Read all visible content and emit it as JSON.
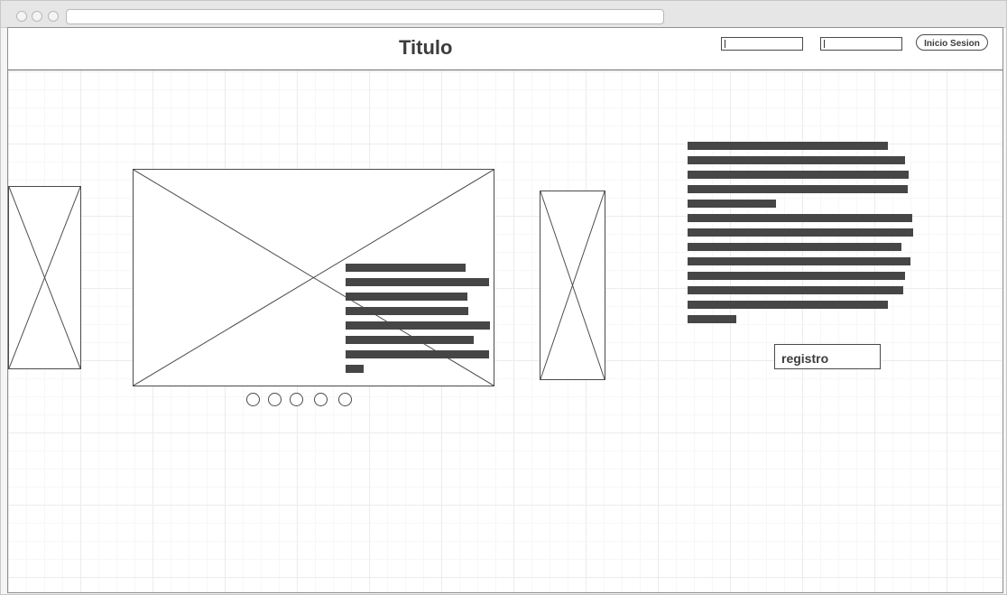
{
  "browser": {
    "address": ""
  },
  "header": {
    "title": "Titulo",
    "input1_value": "",
    "input2_value": "",
    "login_label": "Inicio Sesion"
  },
  "carousel": {
    "dots": 5
  },
  "side": {
    "register_label": "registro"
  }
}
